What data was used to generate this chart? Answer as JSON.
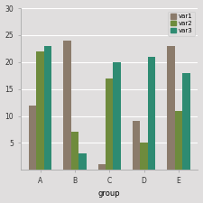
{
  "groups": [
    "A",
    "B",
    "C",
    "D",
    "E"
  ],
  "var1": [
    12,
    24,
    1,
    9,
    23
  ],
  "var2": [
    22,
    7,
    17,
    5,
    11
  ],
  "var3": [
    23,
    3,
    20,
    21,
    18
  ],
  "colors": {
    "var1": "#8B7B6B",
    "var2": "#6E8B3D",
    "var3": "#2E8B72"
  },
  "legend_labels": [
    "var1",
    "var2",
    "var3"
  ],
  "xlabel": "group",
  "ylim": [
    0,
    30
  ],
  "yticks": [
    5,
    10,
    15,
    20,
    25,
    30
  ],
  "background_color": "#e0dede",
  "plot_bg_color": "#e0dede",
  "bar_width": 0.22,
  "axis_fontsize": 6,
  "tick_fontsize": 5.5,
  "legend_fontsize": 5
}
